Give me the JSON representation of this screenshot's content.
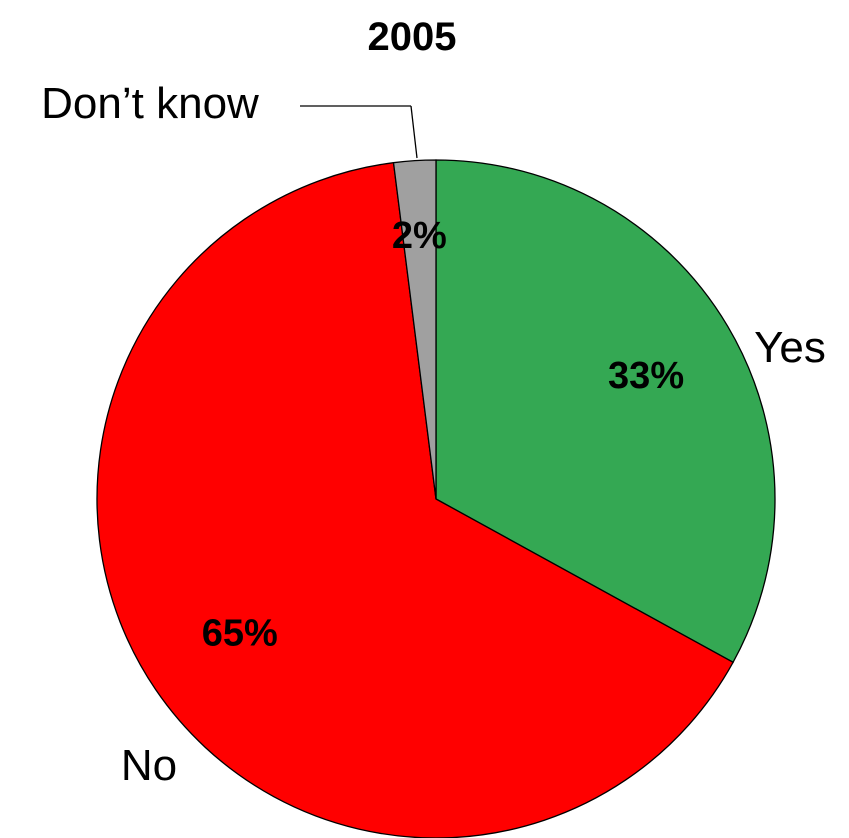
{
  "chart_data": {
    "type": "pie",
    "title": "2005",
    "start_angle_deg": 0,
    "direction": "clockwise",
    "slices": [
      {
        "label": "Yes",
        "value": 33,
        "value_label": "33%",
        "color": "#34a853"
      },
      {
        "label": "No",
        "value": 65,
        "value_label": "65%",
        "color": "#ff0000"
      },
      {
        "label": "Don’t know",
        "value": 2,
        "value_label": "2%",
        "color": "#a0a0a0"
      }
    ]
  }
}
